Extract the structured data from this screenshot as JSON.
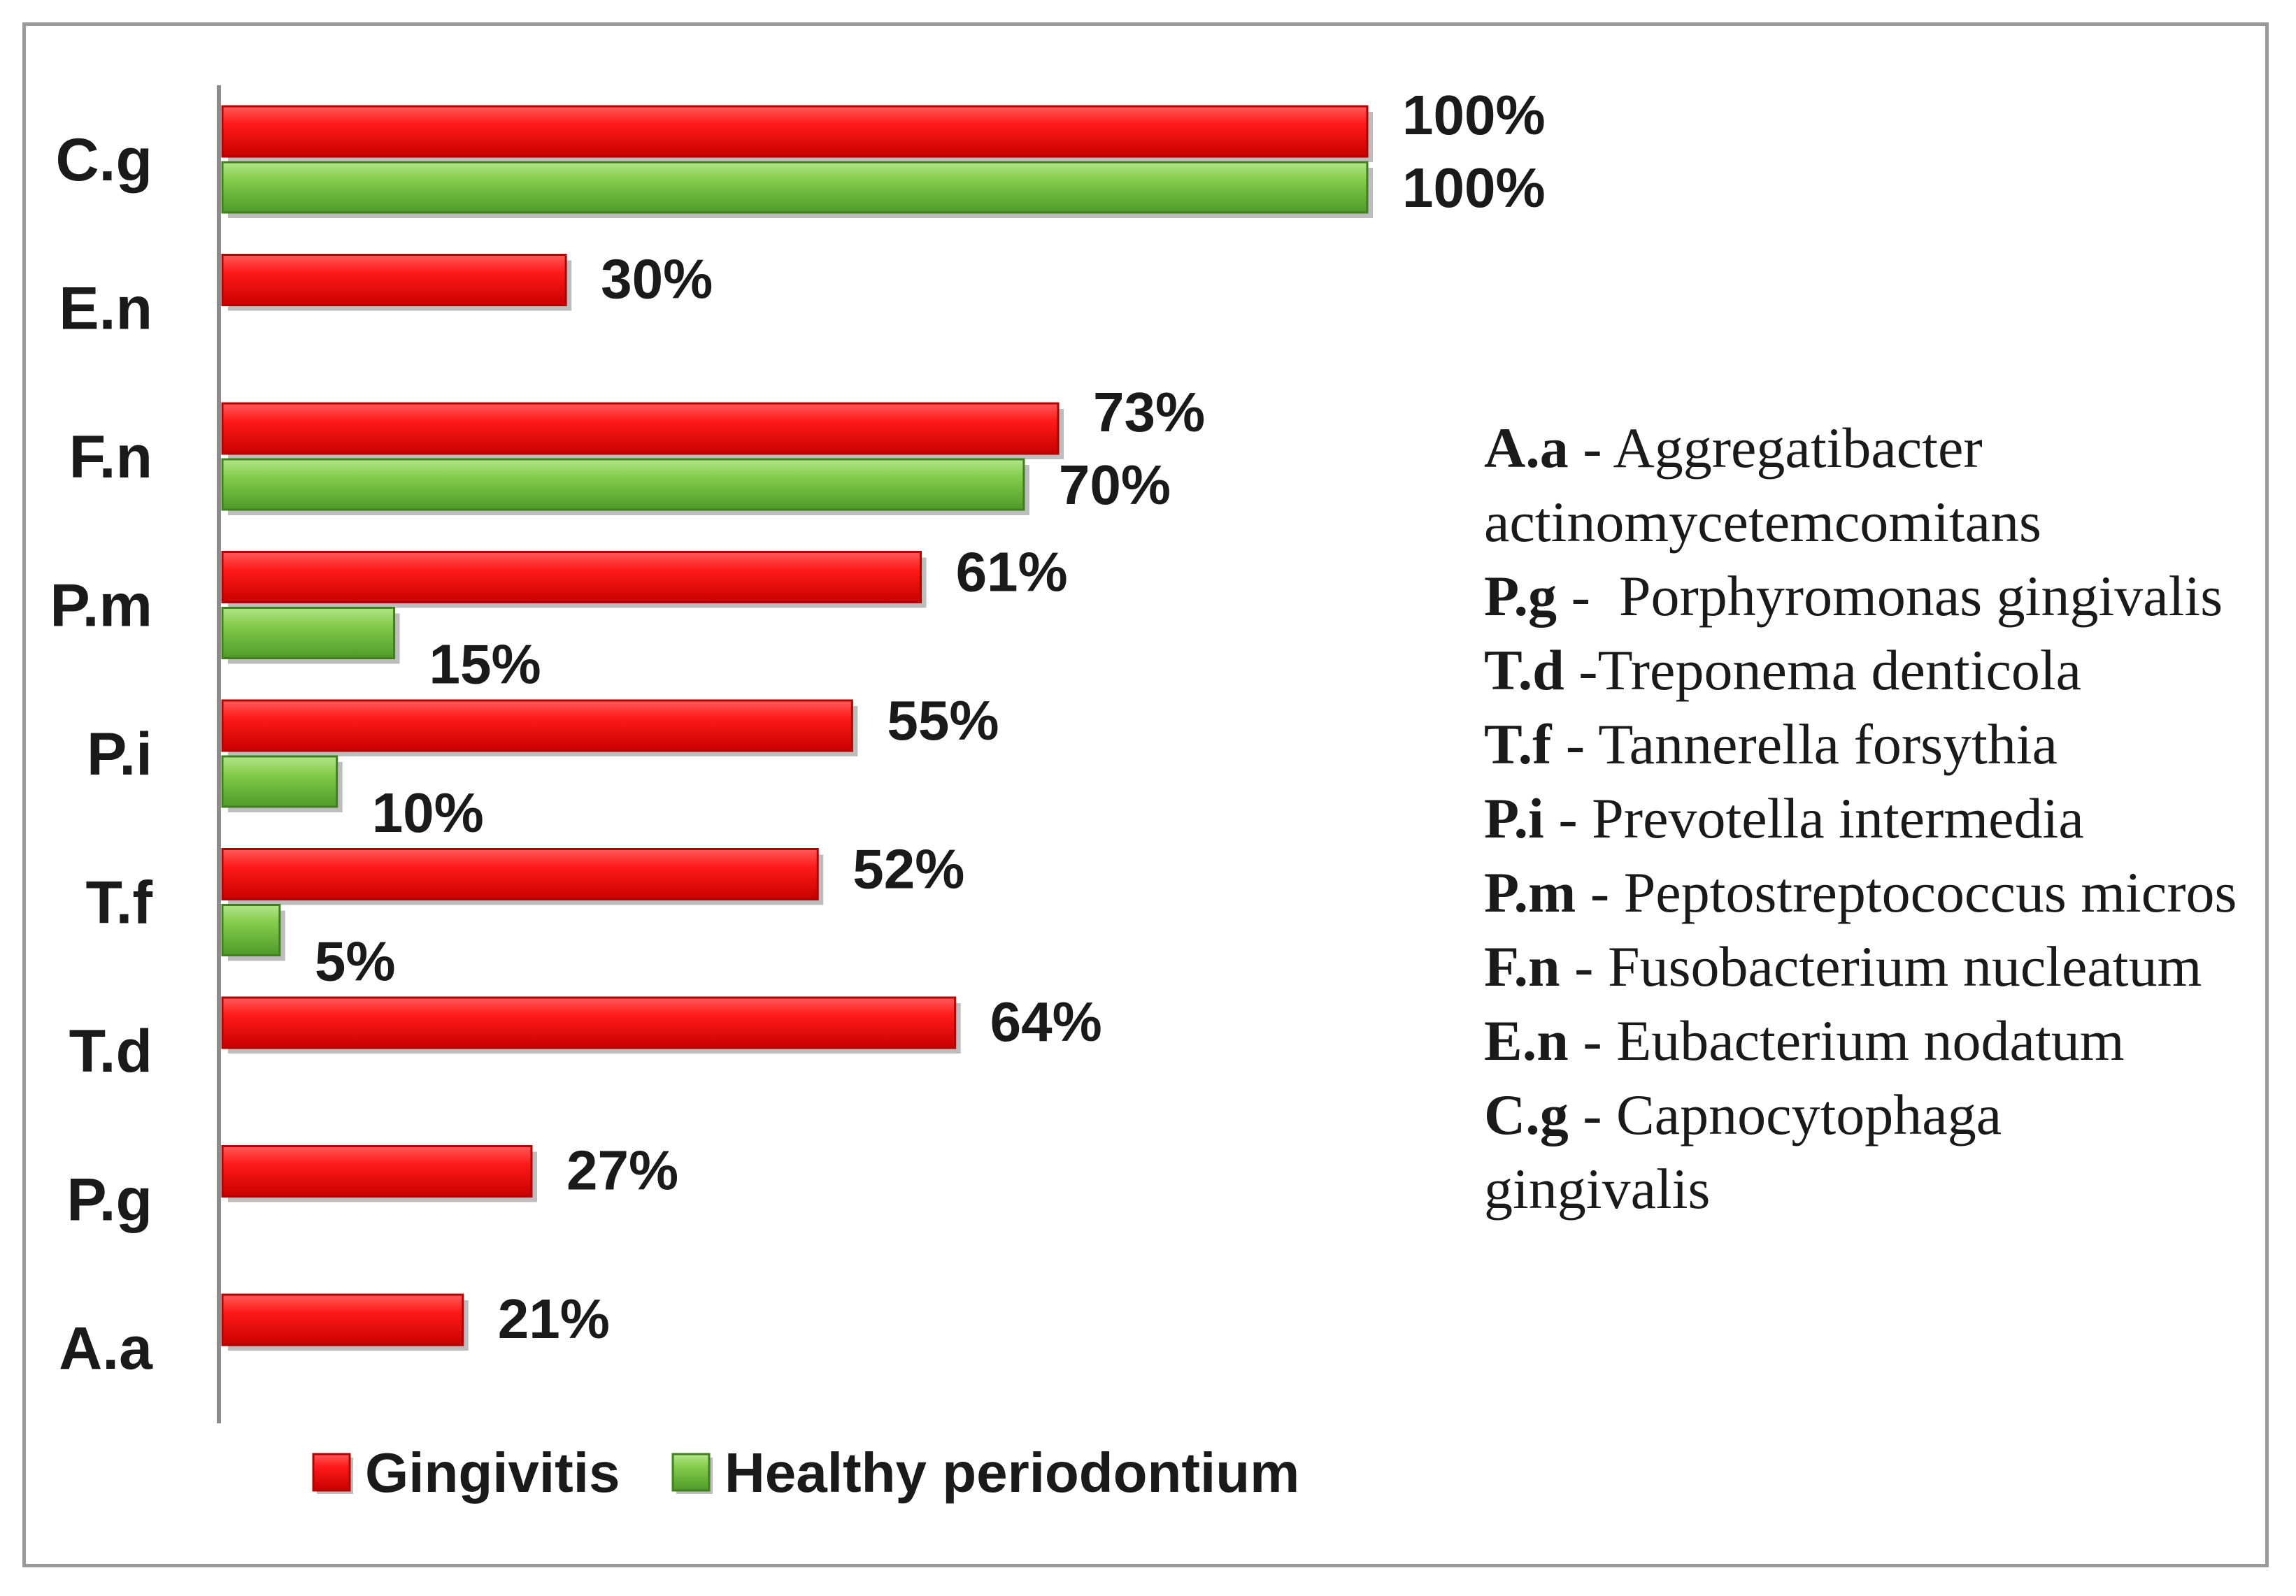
{
  "chart_data": {
    "type": "bar",
    "orientation": "horizontal",
    "categories": [
      "C.g",
      "E.n",
      "F.n",
      "P.m",
      "P.i",
      "T.f",
      "T.d",
      "P.g",
      "A.a"
    ],
    "series": [
      {
        "name": "Gingivitis",
        "color": "#ff1a1a",
        "values": [
          100,
          30,
          73,
          61,
          55,
          52,
          64,
          27,
          21
        ],
        "labels": [
          "100%",
          "30%",
          "73%",
          "61%",
          "55%",
          "52%",
          "64%",
          "27%",
          "21%"
        ]
      },
      {
        "name": "Healthy periodontium",
        "color": "#7cc443",
        "values": [
          100,
          null,
          70,
          15,
          10,
          5,
          null,
          null,
          null
        ],
        "labels": [
          "100%",
          null,
          "70%",
          "15%",
          "10%",
          "5%",
          null,
          null,
          null
        ]
      }
    ],
    "xlim": [
      0,
      100
    ],
    "unit": "%",
    "title": "",
    "xlabel": "",
    "ylabel": "",
    "grid": false,
    "legend_position": "bottom"
  },
  "abbreviations": [
    {
      "abbr": "A.a",
      "sep": " - ",
      "name": "Aggregatibacter actinomycetemcomitans"
    },
    {
      "abbr": "P.g",
      "sep": " -  ",
      "name": "Porphyromonas gingivalis"
    },
    {
      "abbr": "T.d",
      "sep": " -",
      "name": "Treponema denticola"
    },
    {
      "abbr": "T.f",
      "sep": " - ",
      "name": "Tannerella forsythia"
    },
    {
      "abbr": "P.i",
      "sep": " - ",
      "name": "Prevotella intermedia"
    },
    {
      "abbr": "P.m",
      "sep": " - ",
      "name": "Peptostreptococcus micros"
    },
    {
      "abbr": "F.n",
      "sep": " - ",
      "name": "Fusobacterium nucleatum"
    },
    {
      "abbr": "E.n",
      "sep": " - ",
      "name": "Eubacterium nodatum"
    },
    {
      "abbr": "C.g",
      "sep": " - ",
      "name": "Capnocytophaga gingivalis"
    }
  ]
}
